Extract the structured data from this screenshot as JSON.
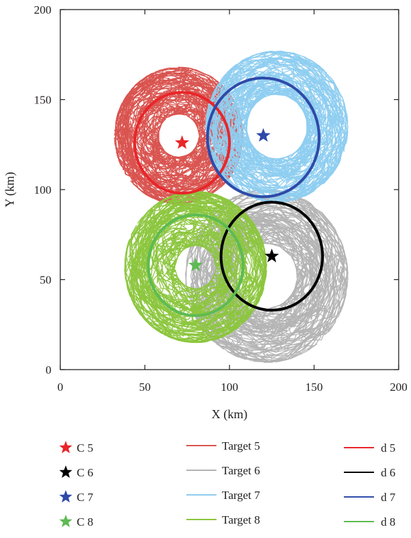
{
  "chart_data": {
    "type": "scatter",
    "title": "",
    "xlabel": "X (km)",
    "ylabel": "Y (km)",
    "xlim": [
      0,
      200
    ],
    "ylim": [
      0,
      200
    ],
    "x_ticks": [
      0,
      50,
      100,
      150,
      200
    ],
    "y_ticks": [
      0,
      50,
      100,
      150,
      200
    ],
    "grid": false,
    "legend_position": "bottom",
    "centers": [
      {
        "name": "C 5",
        "x": 72,
        "y": 126,
        "color": "#e8262a"
      },
      {
        "name": "C 6",
        "x": 125,
        "y": 63,
        "color": "#000000"
      },
      {
        "name": "C 7",
        "x": 120,
        "y": 130,
        "color": "#2e4aa8"
      },
      {
        "name": "C 8",
        "x": 80,
        "y": 58,
        "color": "#5dbb52"
      }
    ],
    "targets": [
      {
        "name": "Target 5",
        "color": "#d9534f",
        "cx": 70,
        "cy": 130,
        "inner_r": 12,
        "outer_r": 38
      },
      {
        "name": "Target 6",
        "color": "#b3b3b3",
        "cx": 122,
        "cy": 52,
        "inner_r": 18,
        "outer_r": 48
      },
      {
        "name": "Target 7",
        "color": "#8ecdf0",
        "cx": 128,
        "cy": 135,
        "inner_r": 18,
        "outer_r": 42
      },
      {
        "name": "Target 8",
        "color": "#8cc63e",
        "cx": 80,
        "cy": 57,
        "inner_r": 12,
        "outer_r": 42
      }
    ],
    "ranges": [
      {
        "name": "d 5",
        "cx": 72,
        "cy": 126,
        "r": 28,
        "color": "#e8262a"
      },
      {
        "name": "d 6",
        "cx": 125,
        "cy": 63,
        "r": 30,
        "color": "#000000"
      },
      {
        "name": "d 7",
        "cx": 120,
        "cy": 129,
        "r": 33,
        "color": "#2e4aa8"
      },
      {
        "name": "d 8",
        "cx": 80,
        "cy": 58,
        "r": 28,
        "color": "#5dbb52"
      }
    ]
  }
}
